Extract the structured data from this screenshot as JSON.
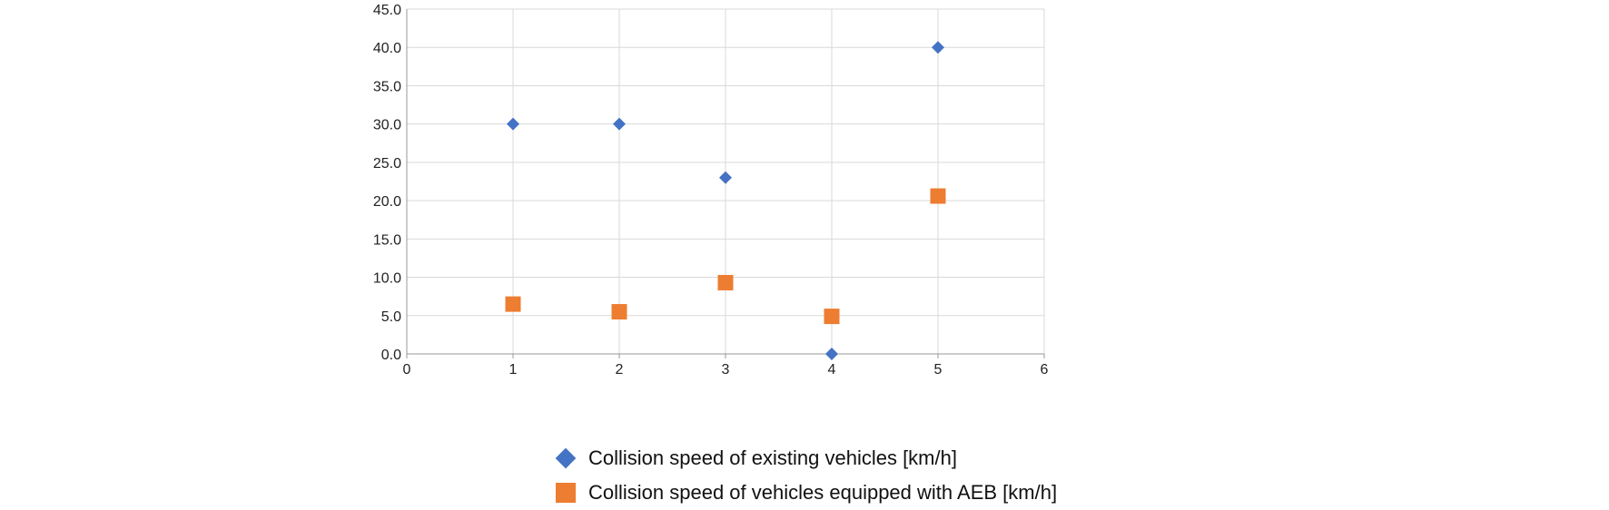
{
  "chart_data": {
    "type": "scatter",
    "title": "",
    "xlabel": "",
    "ylabel": "",
    "xlim": [
      0,
      6
    ],
    "ylim": [
      0,
      45
    ],
    "x_ticks": [
      0,
      1,
      2,
      3,
      4,
      5,
      6
    ],
    "y_ticks": [
      "0.0",
      "5.0",
      "10.0",
      "15.0",
      "20.0",
      "25.0",
      "30.0",
      "35.0",
      "40.0",
      "45.0"
    ],
    "grid": true,
    "legend_position": "bottom",
    "series": [
      {
        "name": "Collision speed of existing vehicles [km/h]",
        "marker": "diamond",
        "color": "#4472c4",
        "x": [
          1,
          2,
          3,
          4,
          5
        ],
        "y": [
          30,
          30,
          23,
          0,
          40
        ]
      },
      {
        "name": "Collision speed of vehicles equipped with AEB [km/h]",
        "marker": "square",
        "color": "#ed7d31",
        "x": [
          1,
          2,
          3,
          4,
          5
        ],
        "y": [
          6.5,
          5.5,
          9.3,
          4.9,
          20.6
        ]
      }
    ]
  }
}
